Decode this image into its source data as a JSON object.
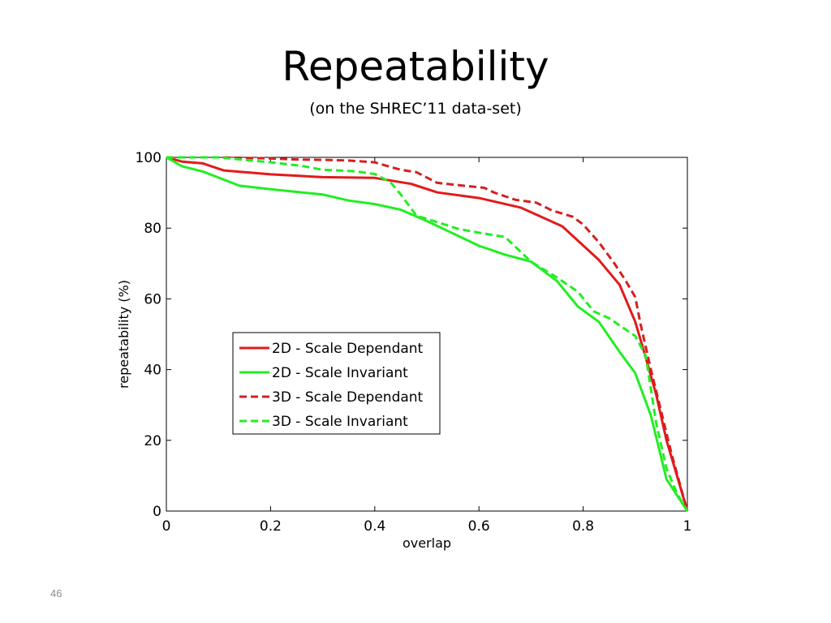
{
  "slide": {
    "title": "Repeatability",
    "subtitle": "(on the SHREC’11 data-set)",
    "page_number": "46"
  },
  "chart_data": {
    "type": "line",
    "title": "",
    "xlabel": "overlap",
    "ylabel": "repeatability (%)",
    "xlim": [
      0,
      1
    ],
    "ylim": [
      0,
      100
    ],
    "xticks": [
      0,
      0.2,
      0.4,
      0.6,
      0.8,
      1
    ],
    "xtick_labels": [
      "0",
      "0.2",
      "0.4",
      "0.6",
      "0.8",
      "1"
    ],
    "yticks": [
      0,
      20,
      40,
      60,
      80,
      100
    ],
    "ytick_labels": [
      "0",
      "20",
      "40",
      "60",
      "80",
      "100"
    ],
    "grid": false,
    "legend_position": "center-left",
    "series": [
      {
        "name": "2D - Scale Dependant",
        "color": "#e31a1c",
        "dash": "solid",
        "x": [
          0,
          0.03,
          0.07,
          0.11,
          0.2,
          0.3,
          0.4,
          0.47,
          0.52,
          0.6,
          0.68,
          0.76,
          0.83,
          0.87,
          0.9,
          0.92,
          0.94,
          0.96,
          0.98,
          1
        ],
        "y": [
          100,
          98.8,
          98.3,
          96.3,
          95.2,
          94.4,
          94.2,
          92.5,
          90.1,
          88.5,
          85.8,
          80.5,
          71,
          64,
          53.5,
          43.5,
          33,
          20,
          10,
          0
        ]
      },
      {
        "name": "2D - Scale Invariant",
        "color": "#22ee22",
        "dash": "solid",
        "x": [
          0,
          0.03,
          0.07,
          0.14,
          0.2,
          0.3,
          0.35,
          0.4,
          0.45,
          0.5,
          0.55,
          0.6,
          0.65,
          0.7,
          0.75,
          0.79,
          0.83,
          0.87,
          0.9,
          0.93,
          0.96,
          1
        ],
        "y": [
          100,
          97.5,
          96,
          92,
          91,
          89.5,
          87.8,
          86.8,
          85.2,
          82,
          78.5,
          75,
          72.5,
          70.5,
          65,
          57.8,
          53.5,
          45,
          39,
          27,
          9,
          0
        ]
      },
      {
        "name": "3D - Scale Dependant",
        "color": "#d42020",
        "dash": "dashed",
        "x": [
          0,
          0.1,
          0.2,
          0.25,
          0.3,
          0.35,
          0.4,
          0.43,
          0.45,
          0.48,
          0.52,
          0.57,
          0.61,
          0.63,
          0.67,
          0.71,
          0.74,
          0.78,
          0.8,
          0.83,
          0.86,
          0.88,
          0.9,
          0.91,
          0.93,
          0.95,
          0.97,
          1
        ],
        "y": [
          100,
          100,
          99.7,
          99.4,
          99.3,
          99.1,
          98.6,
          97.3,
          96.5,
          95.8,
          92.8,
          92,
          91.4,
          90,
          88,
          87.2,
          85,
          83.2,
          81,
          76,
          70,
          65.5,
          60.5,
          53,
          40,
          28,
          16,
          0
        ]
      },
      {
        "name": "3D - Scale Invariant",
        "color": "#22ee22",
        "dash": "dashed",
        "x": [
          0,
          0.1,
          0.2,
          0.26,
          0.3,
          0.36,
          0.4,
          0.43,
          0.45,
          0.48,
          0.52,
          0.56,
          0.6,
          0.65,
          0.7,
          0.75,
          0.79,
          0.82,
          0.85,
          0.88,
          0.9,
          0.92,
          0.94,
          0.96,
          0.98,
          1
        ],
        "y": [
          100,
          100,
          98.6,
          97.6,
          96.5,
          96.1,
          95.3,
          93,
          89.5,
          83.5,
          81.7,
          79.8,
          78.7,
          77.5,
          70.5,
          66,
          62,
          56.5,
          54.5,
          51.5,
          49.5,
          44,
          25,
          12,
          5,
          0
        ]
      }
    ]
  }
}
